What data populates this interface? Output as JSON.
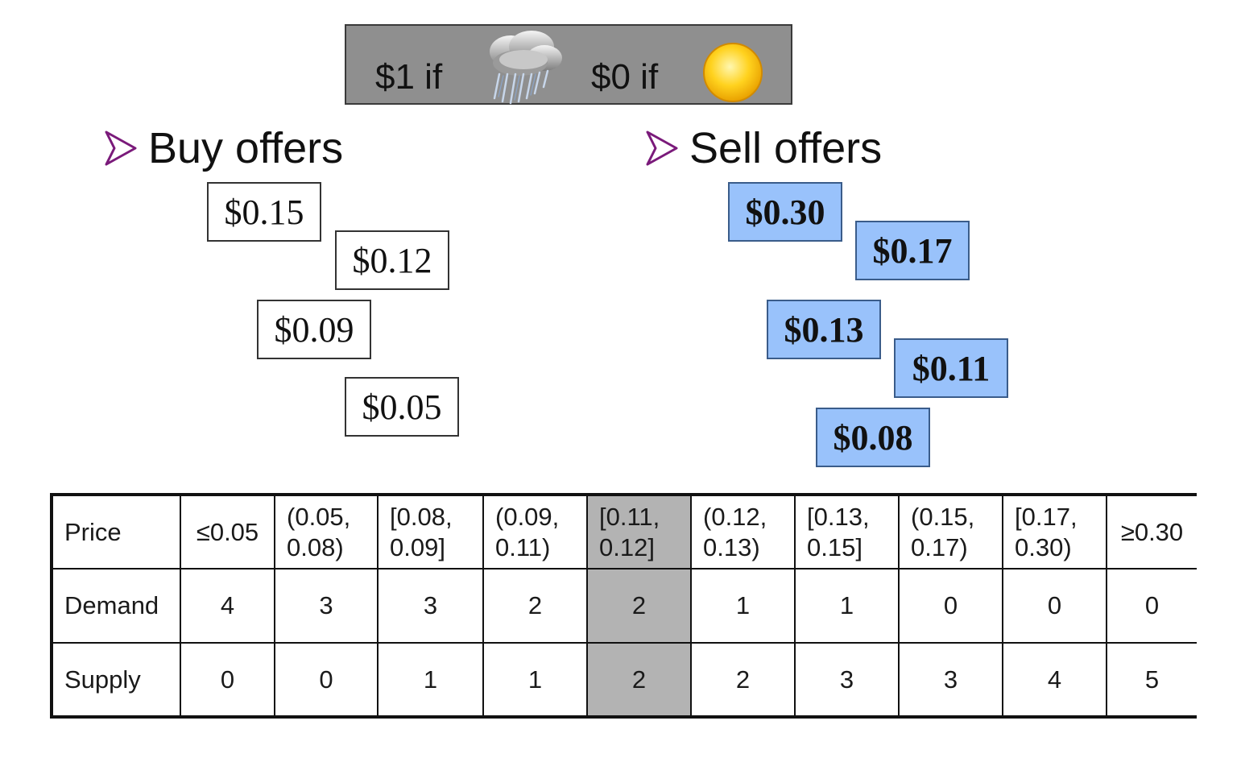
{
  "banner": {
    "rain_text": "$1 if",
    "sun_text": "$0 if",
    "rain_icon": "rain-cloud-icon",
    "sun_icon": "sun-icon"
  },
  "buy": {
    "heading": "Buy offers",
    "offers": [
      "$0.15",
      "$0.12",
      "$0.09",
      "$0.05"
    ]
  },
  "sell": {
    "heading": "Sell offers",
    "offers": [
      "$0.30",
      "$0.17",
      "$0.13",
      "$0.11",
      "$0.08"
    ]
  },
  "table": {
    "row_labels": [
      "Price",
      "Demand",
      "Supply"
    ],
    "prices": [
      [
        "≤0.05"
      ],
      [
        "(0.05,",
        "0.08)"
      ],
      [
        "[0.08,",
        "0.09]"
      ],
      [
        "(0.09,",
        "0.11)"
      ],
      [
        "[0.11,",
        "0.12]"
      ],
      [
        "(0.12,",
        "0.13)"
      ],
      [
        "[0.13,",
        "0.15]"
      ],
      [
        "(0.15,",
        "0.17)"
      ],
      [
        "[0.17,",
        "0.30)"
      ],
      [
        "≥0.30"
      ]
    ],
    "demand": [
      "4",
      "3",
      "3",
      "2",
      "2",
      "1",
      "1",
      "0",
      "0",
      "0"
    ],
    "supply": [
      "0",
      "0",
      "1",
      "1",
      "2",
      "2",
      "3",
      "3",
      "4",
      "5"
    ],
    "highlight_column": 4
  },
  "colors": {
    "banner_bg": "#8f8f8f",
    "sell_box": "#99c2fb",
    "highlight": "#b3b3b3",
    "arrow": "#7a1a7a"
  }
}
